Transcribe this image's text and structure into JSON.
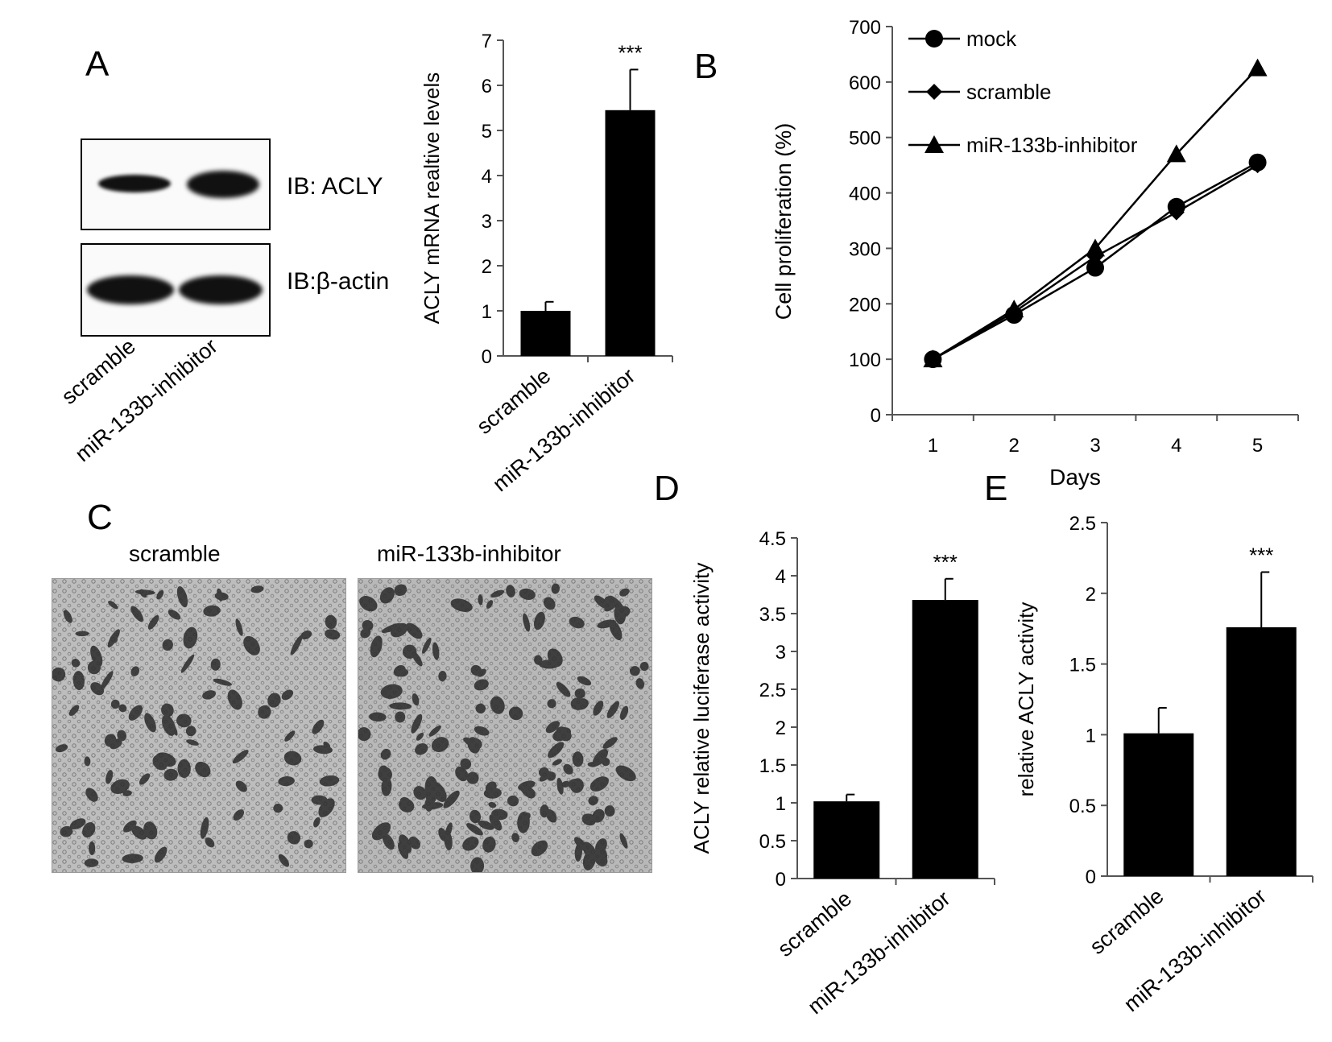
{
  "panel_a": {
    "letter": "A",
    "blot_labels": [
      "IB: ACLY",
      "IB:β-actin"
    ],
    "lane_labels": [
      "scramble",
      "miR-133b-inhibitor"
    ]
  },
  "panel_c": {
    "letter": "C",
    "image_labels": [
      "scramble",
      "miR-133b-inhibitor"
    ]
  },
  "chart_data": [
    {
      "id": "A_bar",
      "type": "bar",
      "categories": [
        "scramble",
        "miR-133b-inhibitor"
      ],
      "values": [
        1.0,
        5.45
      ],
      "errors": [
        0.2,
        0.9
      ],
      "annotations": [
        "",
        "***"
      ],
      "title": "",
      "xlabel": "",
      "ylabel": "ACLY mRNA realtive levels",
      "ylim": [
        0,
        7
      ],
      "yticks": [
        "0",
        "1",
        "2",
        "3",
        "4",
        "5",
        "6",
        "7"
      ]
    },
    {
      "id": "B",
      "letter": "B",
      "type": "line",
      "x": [
        1,
        2,
        3,
        4,
        5
      ],
      "series": [
        {
          "name": "mock",
          "marker": "circle",
          "values": [
            100,
            180,
            265,
            375,
            455
          ]
        },
        {
          "name": "scramble",
          "marker": "diamond",
          "values": [
            100,
            185,
            285,
            365,
            450
          ]
        },
        {
          "name": "miR-133b-inhibitor",
          "marker": "triangle",
          "values": [
            100,
            190,
            300,
            470,
            625
          ]
        }
      ],
      "xlabel": "Days",
      "ylabel": "Cell proliferation (%)",
      "ylim": [
        0,
        700
      ],
      "yticks": [
        "0",
        "100",
        "200",
        "300",
        "400",
        "500",
        "600",
        "700"
      ],
      "xticks": [
        "1",
        "2",
        "3",
        "4",
        "5"
      ],
      "legend": "top-left"
    },
    {
      "id": "D",
      "letter": "D",
      "type": "bar",
      "categories": [
        "scramble",
        "miR-133b-inhibitor"
      ],
      "values": [
        1.02,
        3.68
      ],
      "errors": [
        0.09,
        0.28
      ],
      "annotations": [
        "",
        "***"
      ],
      "xlabel": "",
      "ylabel": "ACLY relative luciferase activity",
      "ylim": [
        0,
        4.5
      ],
      "yticks": [
        "0",
        "0.5",
        "1",
        "1.5",
        "2",
        "2.5",
        "3",
        "3.5",
        "4",
        "4.5"
      ]
    },
    {
      "id": "E",
      "letter": "E",
      "type": "bar",
      "categories": [
        "scramble",
        "miR-133b-inhibitor"
      ],
      "values": [
        1.01,
        1.76
      ],
      "errors": [
        0.18,
        0.39
      ],
      "annotations": [
        "",
        "***"
      ],
      "xlabel": "",
      "ylabel": "relative ACLY activity",
      "ylim": [
        0,
        2.5
      ],
      "yticks": [
        "0",
        "0.5",
        "1",
        "1.5",
        "2",
        "2.5"
      ]
    }
  ]
}
